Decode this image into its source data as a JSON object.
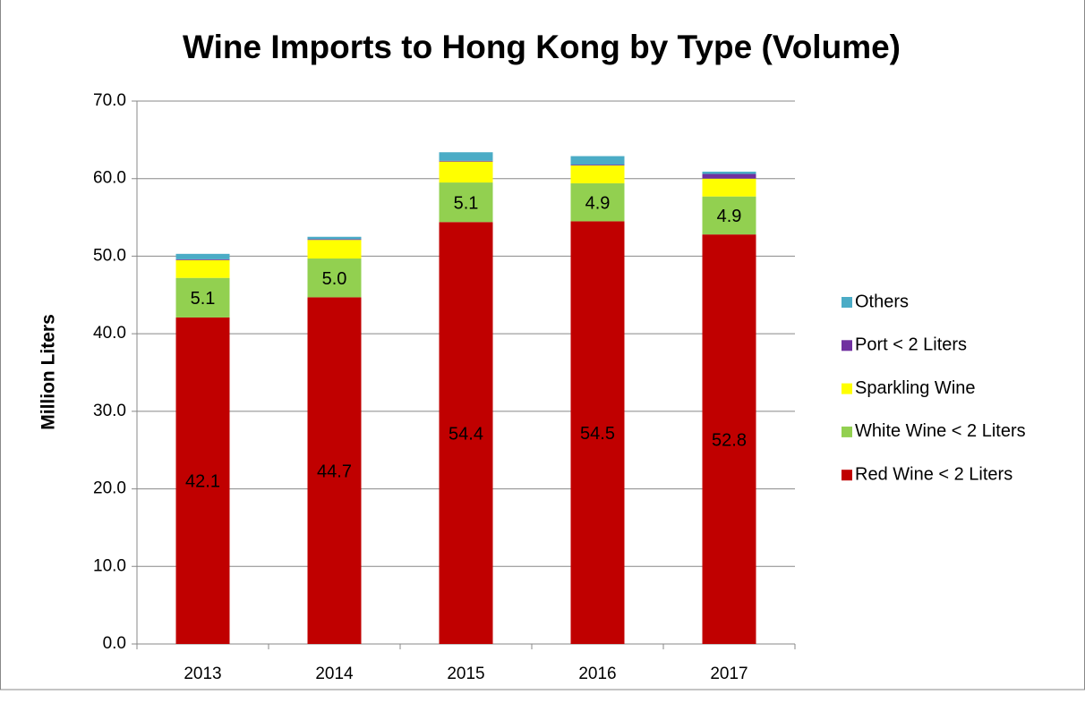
{
  "chart_data": {
    "type": "stacked_bar",
    "title": "Wine Imports to Hong Kong by Type (Volume)",
    "y_label": "Million Liters",
    "categories": [
      "2013",
      "2014",
      "2015",
      "2016",
      "2017"
    ],
    "series": [
      {
        "name": "Red Wine < 2 Liters",
        "color": "#c00000",
        "values": [
          42.1,
          44.7,
          54.4,
          54.5,
          52.8
        ],
        "value_labels": [
          "42.1",
          "44.7",
          "54.4",
          "54.5",
          "52.8"
        ]
      },
      {
        "name": "White Wine < 2 Liters",
        "color": "#92d050",
        "values": [
          5.1,
          5.0,
          5.1,
          4.9,
          4.9
        ],
        "value_labels": [
          "5.1",
          "5.0",
          "5.1",
          "4.9",
          "4.9"
        ]
      },
      {
        "name": "Sparkling Wine",
        "color": "#ffff00",
        "values": [
          2.3,
          2.4,
          2.7,
          2.3,
          2.3
        ]
      },
      {
        "name": "Port < 2 Liters",
        "color": "#7030a0",
        "values": [
          0.1,
          0.1,
          0.1,
          0.1,
          0.6
        ]
      },
      {
        "name": "Others",
        "color": "#4bacc6",
        "values": [
          0.7,
          0.3,
          1.1,
          1.1,
          0.3
        ]
      }
    ],
    "ylim": [
      0,
      70
    ],
    "yticks": [
      {
        "value": 0,
        "label": "0.0"
      },
      {
        "value": 10,
        "label": "10.0"
      },
      {
        "value": 20,
        "label": "20.0"
      },
      {
        "value": 30,
        "label": "30.0"
      },
      {
        "value": 40,
        "label": "40.0"
      },
      {
        "value": 50,
        "label": "50.0"
      },
      {
        "value": 60,
        "label": "60.0"
      },
      {
        "value": 70,
        "label": "70.0"
      }
    ],
    "grid": true,
    "legend": "right"
  }
}
